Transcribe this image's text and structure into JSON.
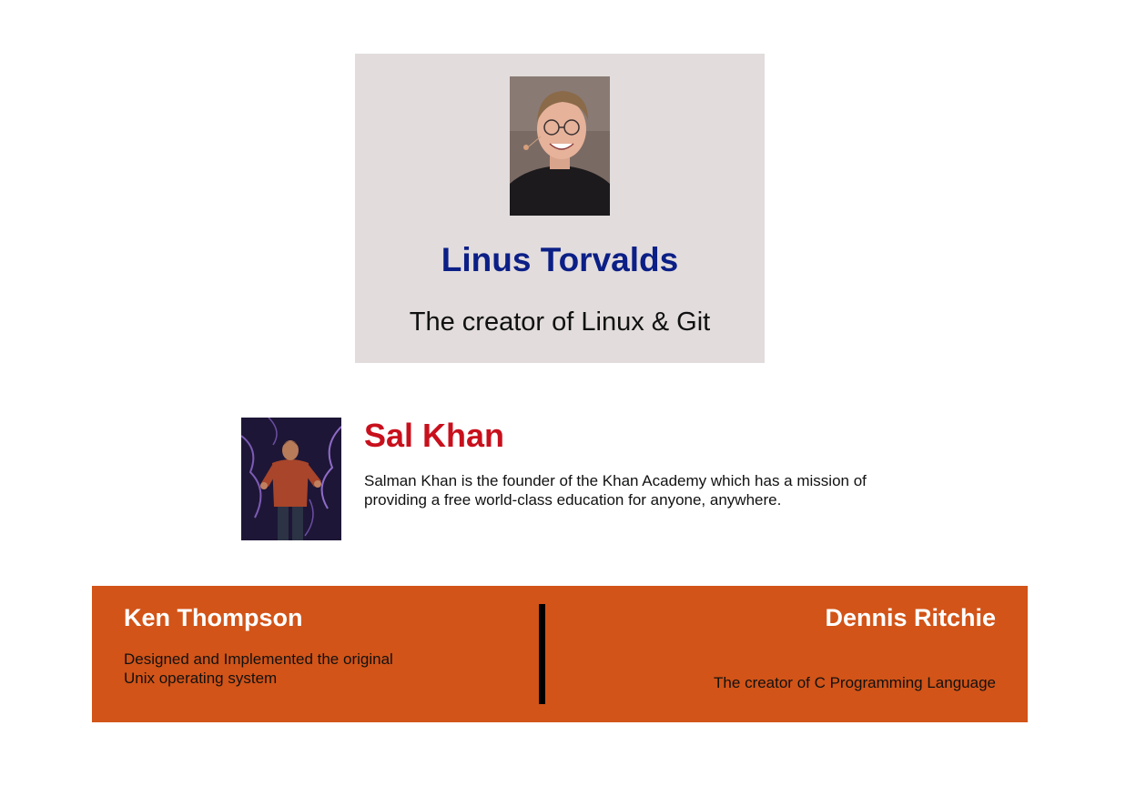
{
  "linus": {
    "photo_icon": "portrait-photo",
    "name": "Linus Torvalds",
    "tagline": "The creator of Linux & Git",
    "colors": {
      "card_bg": "#e2dcdc",
      "name": "#0b1f86"
    }
  },
  "sal": {
    "photo_icon": "portrait-photo",
    "name": "Sal Khan",
    "description": "Salman Khan is the founder of the Khan Academy which has a mission of providing a free world-class education for anyone, anywhere.",
    "colors": {
      "name": "#c8101d"
    }
  },
  "band": {
    "colors": {
      "bg": "#d25418",
      "divider": "#000000"
    },
    "ken": {
      "name": "Ken Thompson",
      "description": "Designed and Implemented the original Unix operating system"
    },
    "dennis": {
      "name": "Dennis Ritchie",
      "description": "The creator of C Programming Language"
    }
  }
}
